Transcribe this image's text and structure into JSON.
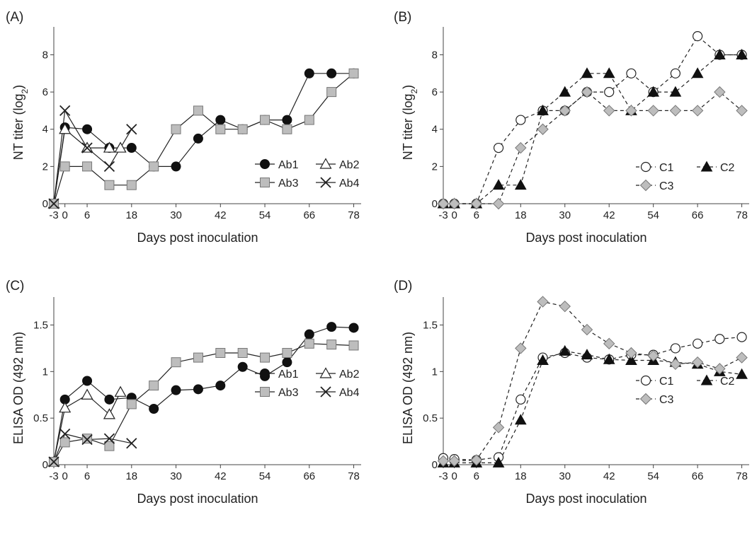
{
  "chart_data": [
    {
      "type": "line",
      "panel_label": "(A)",
      "xlabel": "Days post inoculation",
      "ylabel": "NT titer (log",
      "ylabel_sub": "2",
      "ylabel_close": ")",
      "xticks": [
        -3,
        0,
        6,
        18,
        30,
        42,
        54,
        66,
        78
      ],
      "yticks": [
        0,
        2,
        4,
        6,
        8
      ],
      "ytick_labels": [
        "0",
        "2",
        "4",
        "6",
        "8"
      ],
      "xlim": [
        -3,
        80
      ],
      "ylim": [
        0,
        9.5
      ],
      "legend": "bottom-right",
      "series": [
        {
          "name": "Ab1",
          "marker": "circle-filled",
          "dash": "solid",
          "x": [
            -3,
            0,
            6,
            12,
            18,
            24,
            30,
            36,
            42,
            48,
            54,
            60,
            66,
            72,
            78
          ],
          "y": [
            0,
            4.1,
            4,
            3,
            3,
            2,
            2,
            3.5,
            4.5,
            4,
            4.5,
            4.5,
            7,
            7,
            7
          ]
        },
        {
          "name": "Ab2",
          "marker": "triangle-open",
          "dash": "solid",
          "x": [
            -3,
            0,
            6,
            12,
            15
          ],
          "y": [
            0,
            4,
            3,
            3,
            3
          ]
        },
        {
          "name": "Ab3",
          "marker": "square-gray",
          "dash": "solid",
          "x": [
            -3,
            0,
            6,
            12,
            18,
            24,
            30,
            36,
            42,
            48,
            54,
            60,
            66,
            72,
            78
          ],
          "y": [
            0,
            2,
            2,
            1,
            1,
            2,
            4,
            5,
            4,
            4,
            4.5,
            4,
            4.5,
            6,
            7
          ]
        },
        {
          "name": "Ab4",
          "marker": "x",
          "dash": "solid",
          "x": [
            -3,
            0,
            6,
            12,
            18
          ],
          "y": [
            0,
            5,
            3,
            2,
            4
          ]
        }
      ]
    },
    {
      "type": "line",
      "panel_label": "(B)",
      "xlabel": "Days post inoculation",
      "ylabel": "NT titer (log",
      "ylabel_sub": "2",
      "ylabel_close": ")",
      "xticks": [
        -3,
        0,
        6,
        18,
        30,
        42,
        54,
        66,
        78
      ],
      "yticks": [
        0,
        2,
        4,
        6,
        8
      ],
      "ytick_labels": [
        "0",
        "2",
        "4",
        "6",
        "8"
      ],
      "xlim": [
        -3,
        80
      ],
      "ylim": [
        0,
        9.5
      ],
      "legend": "bottom-right",
      "series": [
        {
          "name": "C1",
          "marker": "circle-open",
          "dash": "dashed",
          "x": [
            -3,
            0,
            6,
            12,
            18,
            24,
            30,
            36,
            42,
            48,
            54,
            60,
            66,
            72,
            78
          ],
          "y": [
            0,
            0,
            0,
            3,
            4.5,
            5,
            5,
            6,
            6,
            7,
            6,
            7,
            9,
            8,
            8
          ]
        },
        {
          "name": "C2",
          "marker": "triangle-filled",
          "dash": "dashed",
          "x": [
            -3,
            0,
            6,
            12,
            18,
            24,
            30,
            36,
            42,
            48,
            54,
            60,
            66,
            72,
            78
          ],
          "y": [
            0,
            0,
            0,
            1,
            1,
            5,
            6,
            7,
            7,
            5,
            6,
            6,
            7,
            8,
            8
          ]
        },
        {
          "name": "C3",
          "marker": "diamond-gray",
          "dash": "dashed",
          "x": [
            -3,
            0,
            6,
            12,
            18,
            24,
            30,
            36,
            42,
            48,
            54,
            60,
            66,
            72,
            78
          ],
          "y": [
            0,
            0,
            0,
            0,
            3,
            4,
            5,
            6,
            5,
            5,
            5,
            5,
            5,
            6,
            5
          ]
        }
      ]
    },
    {
      "type": "line",
      "panel_label": "(C)",
      "xlabel": "Days post inoculation",
      "ylabel": "ELISA OD (492 nm)",
      "ylabel_sub": "",
      "ylabel_close": "",
      "xticks": [
        -3,
        0,
        6,
        18,
        30,
        42,
        54,
        66,
        78
      ],
      "yticks": [
        0,
        0.5,
        1,
        1.5
      ],
      "ytick_labels": [
        "0",
        "0.5",
        "1",
        "1.5"
      ],
      "xlim": [
        -3,
        80
      ],
      "ylim": [
        0,
        1.8
      ],
      "legend": "bottom-right",
      "series": [
        {
          "name": "Ab1",
          "marker": "circle-filled",
          "dash": "solid",
          "x": [
            -3,
            0,
            6,
            12,
            18,
            24,
            30,
            36,
            42,
            48,
            54,
            60,
            66,
            72,
            78
          ],
          "y": [
            0.03,
            0.7,
            0.9,
            0.7,
            0.72,
            0.6,
            0.8,
            0.81,
            0.85,
            1.05,
            0.95,
            1.1,
            1.4,
            1.48,
            1.47
          ]
        },
        {
          "name": "Ab2",
          "marker": "triangle-open",
          "dash": "solid",
          "x": [
            -3,
            0,
            6,
            12,
            15
          ],
          "y": [
            0.03,
            0.61,
            0.75,
            0.54,
            0.78
          ]
        },
        {
          "name": "Ab3",
          "marker": "square-gray",
          "dash": "solid",
          "x": [
            -3,
            0,
            6,
            12,
            18,
            24,
            30,
            36,
            42,
            48,
            54,
            60,
            66,
            72,
            78
          ],
          "y": [
            0.03,
            0.24,
            0.28,
            0.2,
            0.65,
            0.85,
            1.1,
            1.15,
            1.2,
            1.2,
            1.15,
            1.2,
            1.3,
            1.29,
            1.28
          ]
        },
        {
          "name": "Ab4",
          "marker": "x",
          "dash": "solid",
          "x": [
            -3,
            0,
            6,
            12,
            18
          ],
          "y": [
            0.03,
            0.33,
            0.27,
            0.28,
            0.23
          ]
        }
      ]
    },
    {
      "type": "line",
      "panel_label": "(D)",
      "xlabel": "Days post inoculation",
      "ylabel": "ELISA OD (492 nm)",
      "ylabel_sub": "",
      "ylabel_close": "",
      "xticks": [
        -3,
        0,
        6,
        18,
        30,
        42,
        54,
        66,
        78
      ],
      "yticks": [
        0,
        0.5,
        1,
        1.5
      ],
      "ytick_labels": [
        "0",
        "0.5",
        "1",
        "1.5"
      ],
      "xlim": [
        -3,
        80
      ],
      "ylim": [
        0,
        1.8
      ],
      "legend": "bottom-right",
      "series": [
        {
          "name": "C1",
          "marker": "circle-open",
          "dash": "dashed",
          "x": [
            -3,
            0,
            6,
            12,
            18,
            24,
            30,
            36,
            42,
            48,
            54,
            60,
            66,
            72,
            78
          ],
          "y": [
            0.07,
            0.06,
            0.05,
            0.08,
            0.7,
            1.15,
            1.2,
            1.15,
            1.13,
            1.18,
            1.18,
            1.25,
            1.3,
            1.35,
            1.37
          ]
        },
        {
          "name": "C2",
          "marker": "triangle-filled",
          "dash": "dashed",
          "x": [
            -3,
            0,
            6,
            12,
            18,
            24,
            30,
            36,
            42,
            48,
            54,
            60,
            66,
            72,
            78
          ],
          "y": [
            0.02,
            0.02,
            0.02,
            0.02,
            0.48,
            1.12,
            1.22,
            1.18,
            1.13,
            1.12,
            1.12,
            1.1,
            1.08,
            1.0,
            0.97
          ]
        },
        {
          "name": "C3",
          "marker": "diamond-gray",
          "dash": "dashed",
          "x": [
            -3,
            0,
            6,
            12,
            18,
            24,
            30,
            36,
            42,
            48,
            54,
            60,
            66,
            72,
            78
          ],
          "y": [
            0.04,
            0.04,
            0.05,
            0.4,
            1.25,
            1.75,
            1.7,
            1.45,
            1.3,
            1.2,
            1.17,
            1.08,
            1.1,
            1.03,
            1.15
          ]
        }
      ]
    }
  ]
}
